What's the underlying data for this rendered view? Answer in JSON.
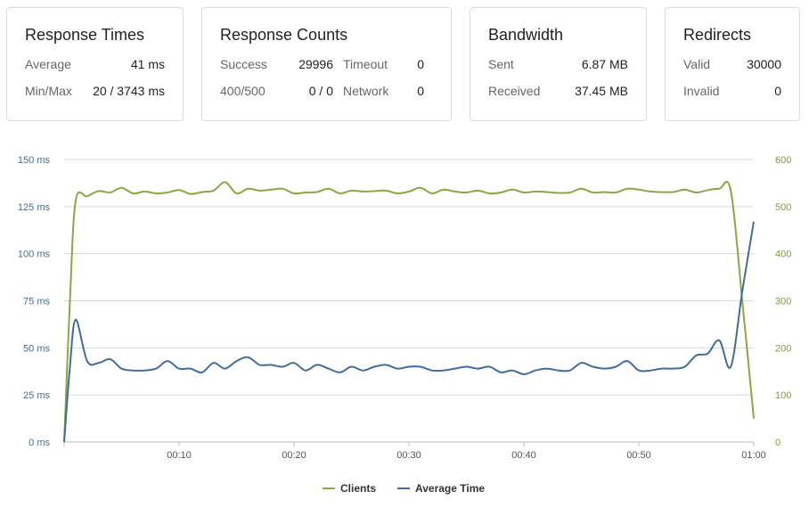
{
  "cards": {
    "response_times": {
      "title": "Response Times",
      "rows": [
        {
          "label": "Average",
          "value": "41 ms"
        },
        {
          "label": "Min/Max",
          "value": "20 / 3743 ms"
        }
      ]
    },
    "response_counts": {
      "title": "Response Counts",
      "rows": [
        {
          "label": "Success",
          "value": "29996",
          "label2": "Timeout",
          "value2": "0"
        },
        {
          "label": "400/500",
          "value": "0 / 0",
          "label2": "Network",
          "value2": "0"
        }
      ]
    },
    "bandwidth": {
      "title": "Bandwidth",
      "rows": [
        {
          "label": "Sent",
          "value": "6.87 MB"
        },
        {
          "label": "Received",
          "value": "37.45 MB"
        }
      ]
    },
    "redirects": {
      "title": "Redirects",
      "rows": [
        {
          "label": "Valid",
          "value": "30000"
        },
        {
          "label": "Invalid",
          "value": "0"
        }
      ]
    }
  },
  "chart_data": {
    "type": "line",
    "x_ticks": [
      "00:10",
      "00:20",
      "00:30",
      "00:40",
      "00:50",
      "01:00"
    ],
    "y_left_ticks": [
      "0 ms",
      "25 ms",
      "50 ms",
      "75 ms",
      "100 ms",
      "125 ms",
      "150 ms"
    ],
    "y_right_ticks": [
      "0",
      "100",
      "200",
      "300",
      "400",
      "500",
      "600"
    ],
    "y_left_range": [
      0,
      150
    ],
    "y_right_range": [
      0,
      600
    ],
    "x_range_seconds": [
      0,
      60
    ],
    "grid": true,
    "legend_position": "bottom-center",
    "colors": {
      "clients": "#8ba745",
      "average_time": "#436c99",
      "grid": "#d9d9d9",
      "left_axis": "#436c99",
      "right_axis": "#7f9e33",
      "x_axis": "#555555"
    },
    "series": [
      {
        "name": "Clients",
        "axis": "right",
        "x": [
          0,
          0.5,
          1,
          2,
          3,
          4,
          5,
          6,
          7,
          8,
          9,
          10,
          11,
          12,
          13,
          14,
          15,
          16,
          17,
          18,
          19,
          20,
          21,
          22,
          23,
          24,
          25,
          26,
          27,
          28,
          29,
          30,
          31,
          32,
          33,
          34,
          35,
          36,
          37,
          38,
          39,
          40,
          41,
          42,
          43,
          44,
          45,
          46,
          47,
          48,
          49,
          50,
          51,
          52,
          53,
          54,
          55,
          56,
          57,
          58,
          59,
          60
        ],
        "values": [
          0,
          300,
          512,
          522,
          533,
          530,
          540,
          528,
          532,
          528,
          530,
          535,
          527,
          531,
          534,
          552,
          528,
          538,
          534,
          536,
          538,
          528,
          530,
          531,
          538,
          528,
          534,
          532,
          533,
          534,
          528,
          532,
          540,
          528,
          536,
          532,
          530,
          534,
          528,
          530,
          536,
          530,
          532,
          531,
          529,
          530,
          538,
          530,
          531,
          530,
          538,
          536,
          532,
          531,
          531,
          536,
          530,
          535,
          538,
          534,
          300,
          50
        ]
      },
      {
        "name": "Average Time",
        "axis": "left",
        "x": [
          0,
          0.5,
          1,
          2,
          3,
          4,
          5,
          6,
          7,
          8,
          9,
          10,
          11,
          12,
          13,
          14,
          15,
          16,
          17,
          18,
          19,
          20,
          21,
          22,
          23,
          24,
          25,
          26,
          27,
          28,
          29,
          30,
          31,
          32,
          33,
          34,
          35,
          36,
          37,
          38,
          39,
          40,
          41,
          42,
          43,
          44,
          45,
          46,
          47,
          48,
          49,
          50,
          51,
          52,
          53,
          54,
          55,
          56,
          57,
          58,
          59,
          60
        ],
        "values": [
          0,
          40,
          65,
          43,
          42,
          44,
          39,
          38,
          38,
          39,
          43,
          39,
          39,
          37,
          42,
          39,
          43,
          45,
          41,
          41,
          40,
          42,
          38,
          41,
          39,
          37,
          40,
          38,
          40,
          41,
          39,
          40,
          40,
          38,
          38,
          39,
          40,
          39,
          40,
          37,
          38,
          36,
          38,
          39,
          38,
          38,
          42,
          40,
          39,
          40,
          43,
          38,
          38,
          39,
          39,
          40,
          46,
          47,
          54,
          40,
          80,
          117
        ]
      }
    ]
  }
}
